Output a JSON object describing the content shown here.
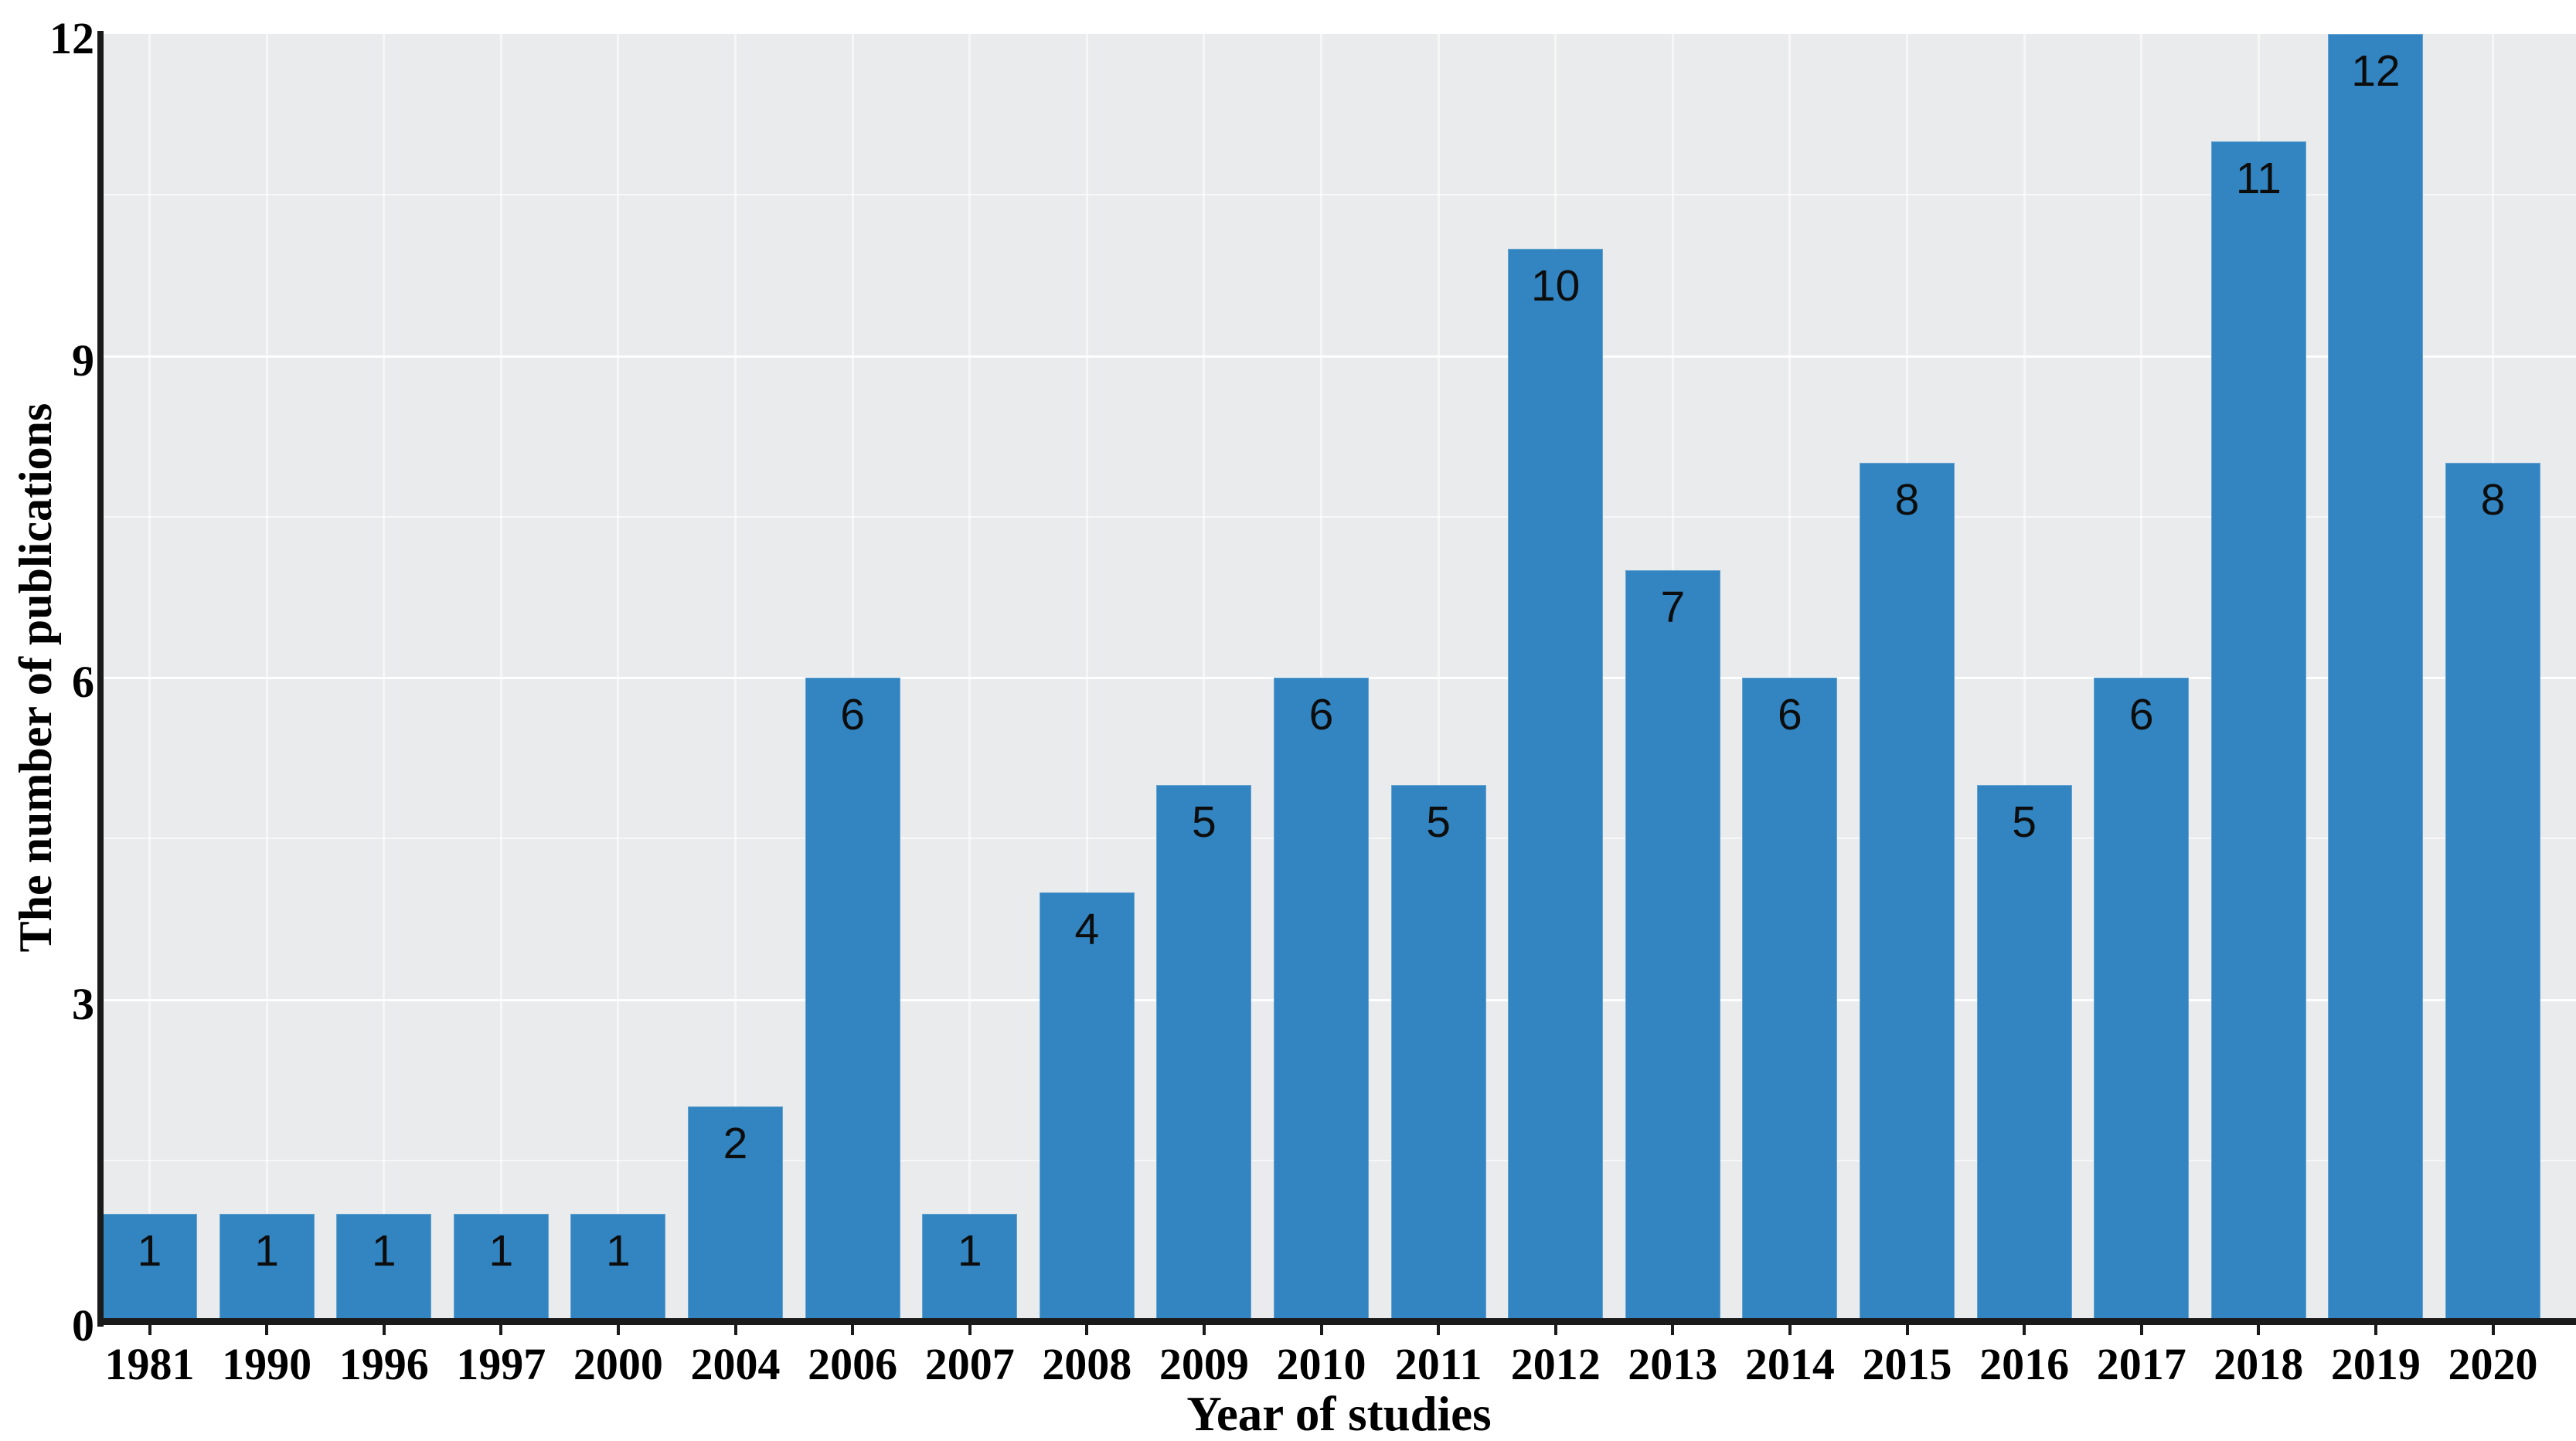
{
  "chart_data": {
    "type": "bar",
    "title": "",
    "xlabel": "Year of studies",
    "ylabel": "The number of publications",
    "categories": [
      "1981",
      "1990",
      "1996",
      "1997",
      "2000",
      "2004",
      "2006",
      "2007",
      "2008",
      "2009",
      "2010",
      "2011",
      "2012",
      "2013",
      "2014",
      "2015",
      "2016",
      "2017",
      "2018",
      "2019",
      "2020"
    ],
    "values": [
      1,
      1,
      1,
      1,
      1,
      2,
      6,
      1,
      4,
      5,
      6,
      5,
      10,
      7,
      6,
      8,
      5,
      6,
      11,
      12,
      8
    ],
    "yticks": [
      0,
      3,
      6,
      9,
      12
    ],
    "ylim": [
      0,
      12
    ],
    "legend": "none",
    "grid": {
      "horizontal_major": [
        3,
        6,
        9
      ],
      "horizontal_minor": [
        1.5,
        4.5,
        7.5,
        10.5
      ],
      "vertical": "at each category center"
    },
    "bar_value_labels_position": "inside bar, top center",
    "colors": {
      "bar": "#3285c1",
      "panel_background": "#eaebec",
      "gridline": "#ffffff",
      "axis_line": "#1a1a1a",
      "text": "#000000"
    }
  }
}
